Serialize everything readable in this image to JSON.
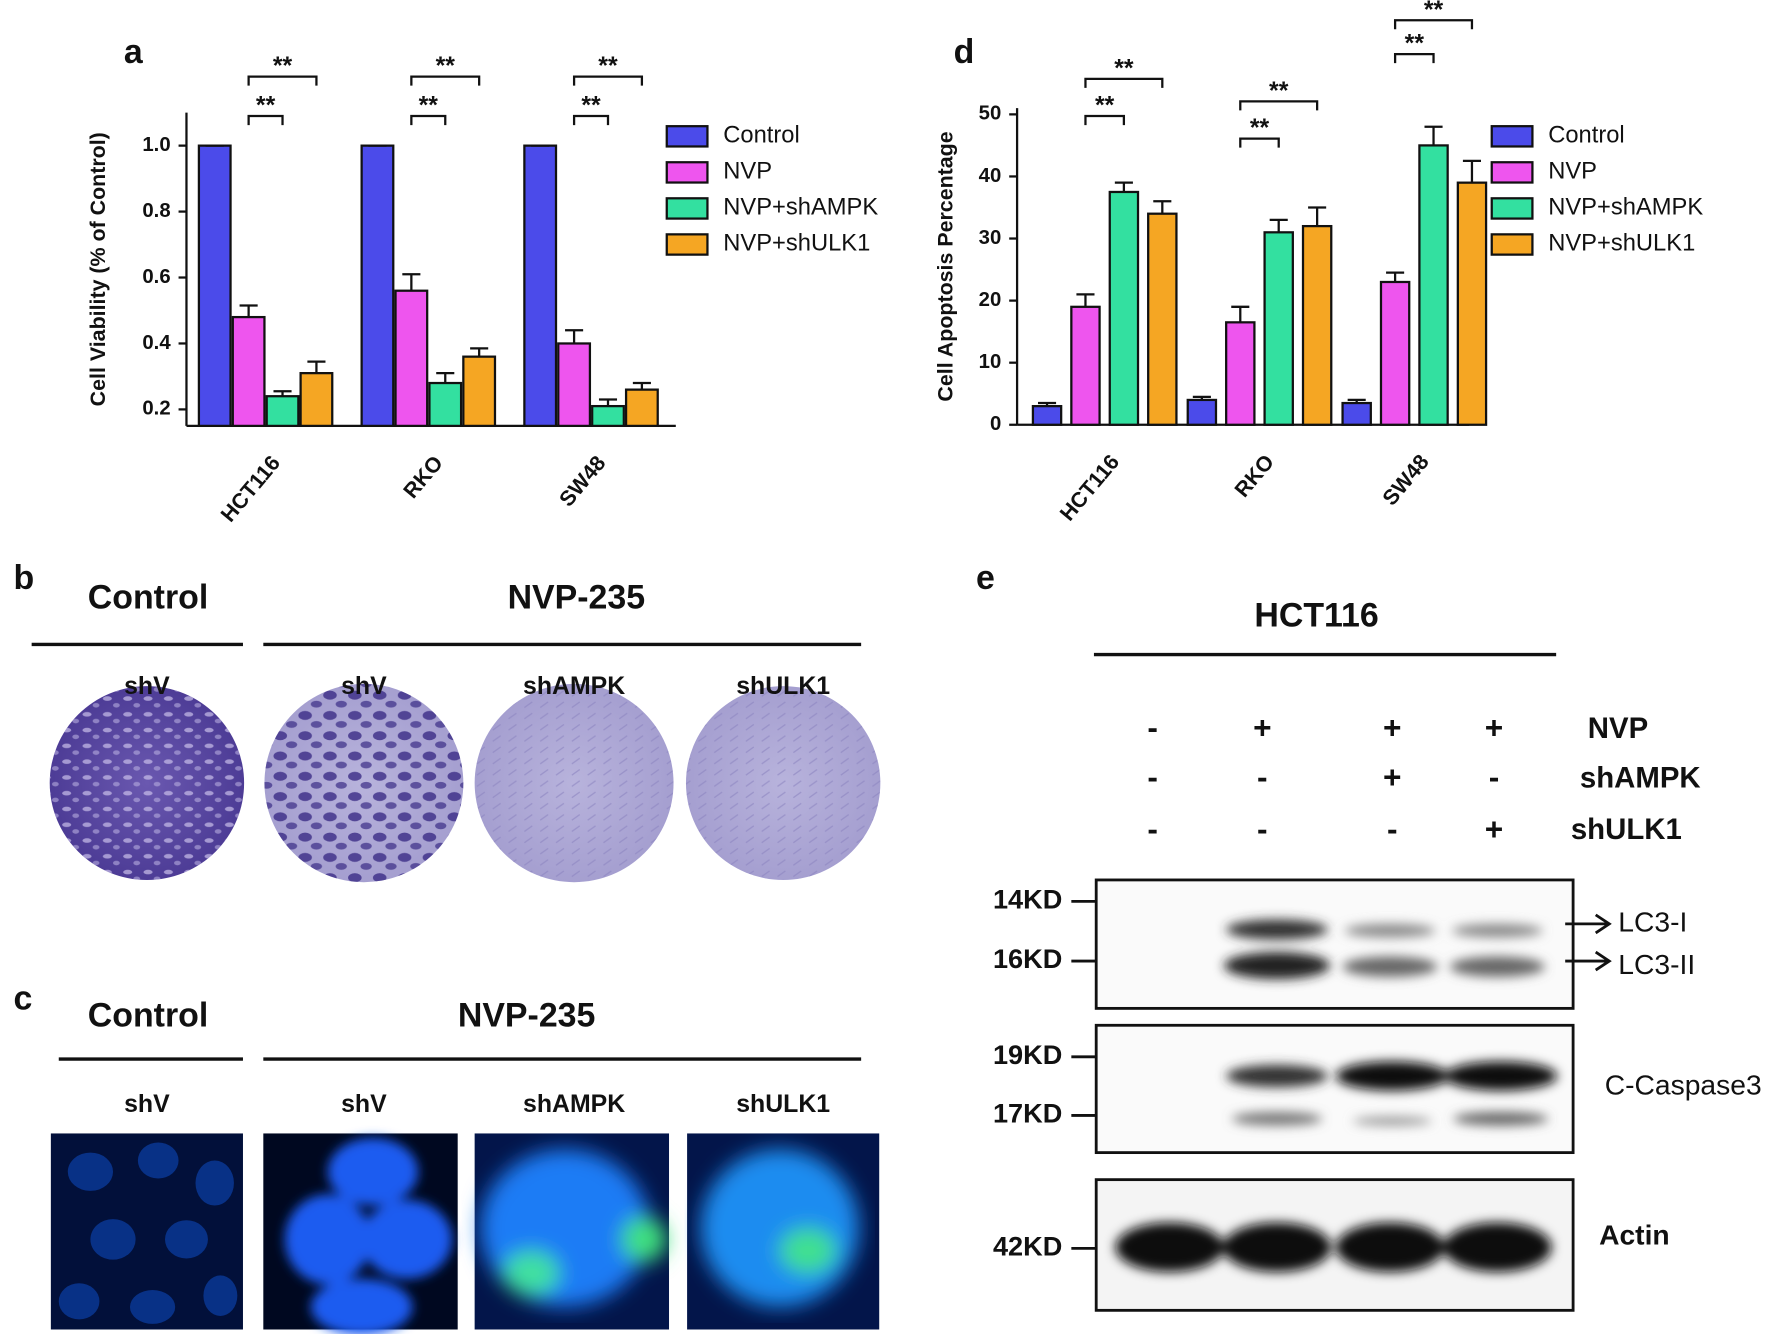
{
  "chart_data": [
    {
      "type": "bar",
      "panel_label": "a",
      "y_label": "Cell Viability (% of Control)",
      "categories": [
        "HCT116",
        "RKO",
        "SW48"
      ],
      "series": [
        {
          "name": "Control",
          "color": "#4b4bea",
          "values": [
            1,
            1,
            1
          ],
          "errors": [
            0,
            0,
            0
          ]
        },
        {
          "name": "NVP",
          "color": "#ee55ee",
          "values": [
            0.48,
            0.56,
            0.4
          ],
          "errors": [
            0.035,
            0.05,
            0.04
          ]
        },
        {
          "name": "NVP+shAMPK",
          "color": "#33e0a0",
          "values": [
            0.24,
            0.28,
            0.21
          ],
          "errors": [
            0.015,
            0.03,
            0.02
          ]
        },
        {
          "name": "NVP+shULK1",
          "color": "#f5a623",
          "values": [
            0.31,
            0.36,
            0.26
          ],
          "errors": [
            0.035,
            0.025,
            0.02
          ]
        }
      ],
      "ylim": [
        0.15,
        1.1
      ],
      "yticks": [
        0.2,
        0.4,
        0.6,
        0.8,
        {
          "value": 1,
          "label": "1.0"
        }
      ],
      "significance": [
        [
          "**",
          "**"
        ],
        [
          "**",
          "**"
        ],
        [
          "**",
          "**"
        ]
      ]
    },
    {
      "type": "bar",
      "panel_label": "d",
      "y_label": "Cell Apoptosis Percentage",
      "categories": [
        "HCT116",
        "RKO",
        "SW48"
      ],
      "series": [
        {
          "name": "Control",
          "color": "#4b4bea",
          "values": [
            3,
            4,
            3.5
          ],
          "errors": [
            0.5,
            0.5,
            0.5
          ]
        },
        {
          "name": "NVP",
          "color": "#ee55ee",
          "values": [
            19,
            16.5,
            23
          ],
          "errors": [
            2,
            2.5,
            1.5
          ]
        },
        {
          "name": "NVP+shAMPK",
          "color": "#33e0a0",
          "values": [
            37.5,
            31,
            45
          ],
          "errors": [
            1.5,
            2,
            3
          ]
        },
        {
          "name": "NVP+shULK1",
          "color": "#f5a623",
          "values": [
            34,
            32,
            39
          ],
          "errors": [
            2,
            3,
            3.5
          ]
        }
      ],
      "ylim": [
        0,
        51
      ],
      "yticks": [
        0,
        10,
        20,
        30,
        40,
        50
      ],
      "significance": [
        [
          "**",
          "**"
        ],
        [
          "**",
          "**"
        ],
        [
          "**",
          "**"
        ]
      ]
    }
  ],
  "panels": {
    "b": {
      "letter": "b",
      "groups": [
        "Control",
        "NVP-235"
      ],
      "lanes": [
        "shV",
        "shV",
        "shAMPK",
        "shULK1"
      ]
    },
    "c": {
      "letter": "c",
      "groups": [
        "Control",
        "NVP-235"
      ],
      "lanes": [
        "shV",
        "shV",
        "shAMPK",
        "shULK1"
      ]
    },
    "e": {
      "letter": "e",
      "cell_line": "HCT116",
      "treatments": [
        {
          "name": "NVP",
          "signs": [
            "-",
            "+",
            "+",
            "+"
          ]
        },
        {
          "name": "shAMPK",
          "signs": [
            "-",
            "-",
            "+",
            "-"
          ]
        },
        {
          "name": "shULK1",
          "signs": [
            "-",
            "-",
            "-",
            "+"
          ]
        }
      ],
      "markers": [
        "14KD",
        "16KD",
        "19KD",
        "17KD",
        "42KD"
      ],
      "bands": [
        "LC3-I",
        "LC3-II",
        "C-Caspase3",
        "Actin"
      ]
    }
  }
}
